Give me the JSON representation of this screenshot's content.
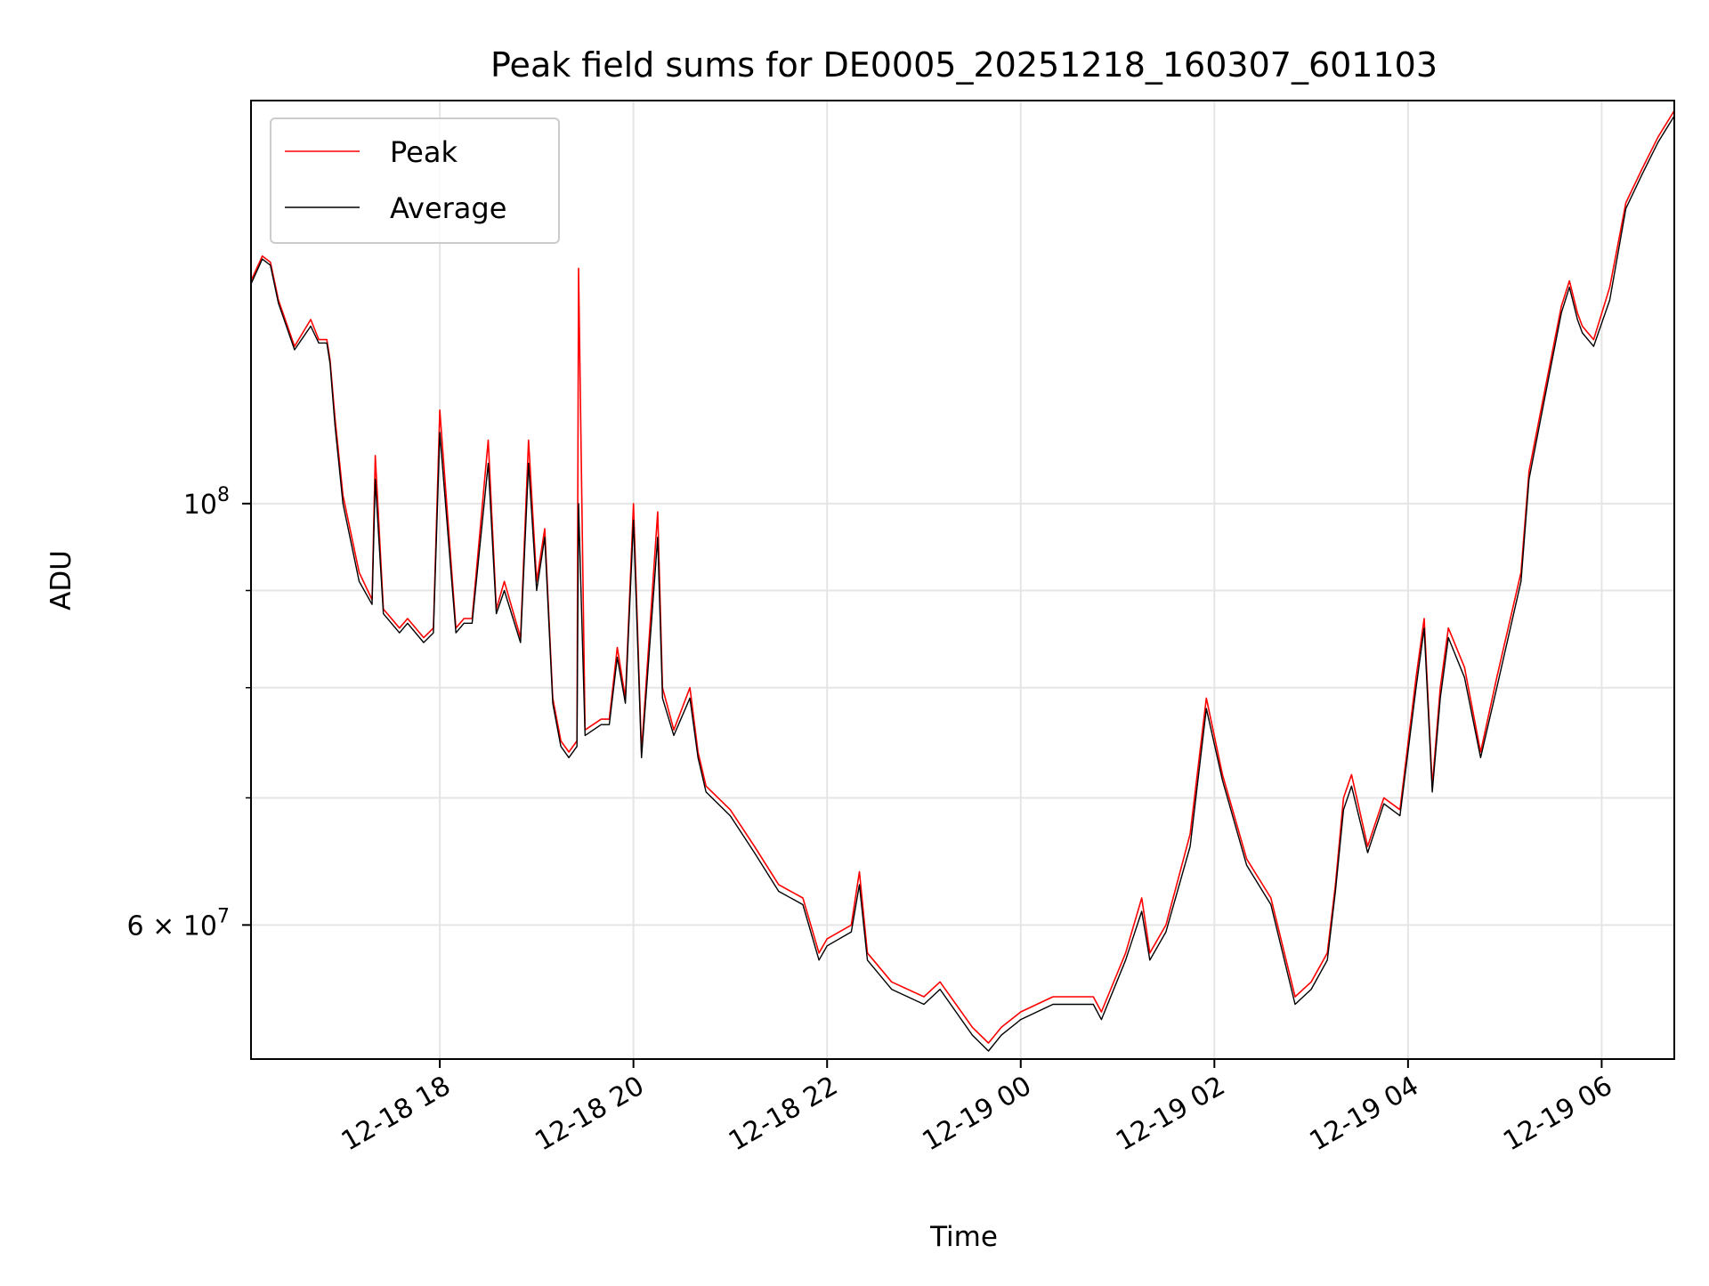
{
  "chart_data": {
    "type": "line",
    "title": "Peak field sums for DE0005_20251218_160307_601103",
    "xlabel": "Time",
    "ylabel": "ADU",
    "y_scale": "log",
    "ylim": [
      51000000,
      163000000
    ],
    "xlim": [
      "2025-12-18 16:03",
      "2025-12-19 06:45"
    ],
    "grid": true,
    "legend": {
      "position": "top-left"
    },
    "x_ticks": [
      {
        "time": "2025-12-18 18:00",
        "label": "12-18 18"
      },
      {
        "time": "2025-12-18 20:00",
        "label": "12-18 20"
      },
      {
        "time": "2025-12-18 22:00",
        "label": "12-18 22"
      },
      {
        "time": "2025-12-19 00:00",
        "label": "12-19 00"
      },
      {
        "time": "2025-12-19 02:00",
        "label": "12-19 02"
      },
      {
        "time": "2025-12-19 04:00",
        "label": "12-19 04"
      },
      {
        "time": "2025-12-19 06:00",
        "label": "12-19 06"
      }
    ],
    "y_major_ticks": [
      {
        "value": 60000000,
        "base": "6 × 10",
        "exp": "7"
      },
      {
        "value": 100000000,
        "base": "10",
        "exp": "8"
      }
    ],
    "y_minor_ticks": [
      70000000,
      80000000,
      90000000
    ],
    "series": [
      {
        "name": "Peak",
        "color": "#ff0000",
        "x": [
          "2025-12-18 16:03",
          "2025-12-18 16:10",
          "2025-12-18 16:15",
          "2025-12-18 16:20",
          "2025-12-18 16:30",
          "2025-12-18 16:40",
          "2025-12-18 16:45",
          "2025-12-18 16:50",
          "2025-12-18 16:52",
          "2025-12-18 16:55",
          "2025-12-18 17:00",
          "2025-12-18 17:10",
          "2025-12-18 17:18",
          "2025-12-18 17:20",
          "2025-12-18 17:25",
          "2025-12-18 17:35",
          "2025-12-18 17:40",
          "2025-12-18 17:50",
          "2025-12-18 17:56",
          "2025-12-18 18:00",
          "2025-12-18 18:10",
          "2025-12-18 18:15",
          "2025-12-18 18:20",
          "2025-12-18 18:30",
          "2025-12-18 18:35",
          "2025-12-18 18:40",
          "2025-12-18 18:50",
          "2025-12-18 18:55",
          "2025-12-18 19:00",
          "2025-12-18 19:05",
          "2025-12-18 19:10",
          "2025-12-18 19:15",
          "2025-12-18 19:20",
          "2025-12-18 19:25",
          "2025-12-18 19:26",
          "2025-12-18 19:30",
          "2025-12-18 19:40",
          "2025-12-18 19:45",
          "2025-12-18 19:50",
          "2025-12-18 19:55",
          "2025-12-18 20:00",
          "2025-12-18 20:05",
          "2025-12-18 20:15",
          "2025-12-18 20:18",
          "2025-12-18 20:25",
          "2025-12-18 20:35",
          "2025-12-18 20:40",
          "2025-12-18 20:45",
          "2025-12-18 21:00",
          "2025-12-18 21:15",
          "2025-12-18 21:30",
          "2025-12-18 21:45",
          "2025-12-18 21:55",
          "2025-12-18 22:00",
          "2025-12-18 22:15",
          "2025-12-18 22:20",
          "2025-12-18 22:25",
          "2025-12-18 22:40",
          "2025-12-18 23:00",
          "2025-12-18 23:10",
          "2025-12-18 23:30",
          "2025-12-18 23:40",
          "2025-12-18 23:48",
          "2025-12-19 00:00",
          "2025-12-19 00:20",
          "2025-12-19 00:30",
          "2025-12-19 00:45",
          "2025-12-19 00:50",
          "2025-12-19 01:05",
          "2025-12-19 01:15",
          "2025-12-19 01:20",
          "2025-12-19 01:30",
          "2025-12-19 01:45",
          "2025-12-19 01:55",
          "2025-12-19 02:05",
          "2025-12-19 02:20",
          "2025-12-19 02:35",
          "2025-12-19 02:50",
          "2025-12-19 03:00",
          "2025-12-19 03:10",
          "2025-12-19 03:15",
          "2025-12-19 03:20",
          "2025-12-19 03:25",
          "2025-12-19 03:35",
          "2025-12-19 03:45",
          "2025-12-19 03:55",
          "2025-12-19 04:05",
          "2025-12-19 04:10",
          "2025-12-19 04:15",
          "2025-12-19 04:20",
          "2025-12-19 04:25",
          "2025-12-19 04:35",
          "2025-12-19 04:45",
          "2025-12-19 04:55",
          "2025-12-19 05:10",
          "2025-12-19 05:15",
          "2025-12-19 05:25",
          "2025-12-19 05:35",
          "2025-12-19 05:40",
          "2025-12-19 05:45",
          "2025-12-19 05:48",
          "2025-12-19 05:55",
          "2025-12-19 06:05",
          "2025-12-19 06:15",
          "2025-12-19 06:25",
          "2025-12-19 06:35",
          "2025-12-19 06:45"
        ],
        "y": [
          131000000,
          135000000,
          134000000,
          128000000,
          121000000,
          125000000,
          122000000,
          122000000,
          119000000,
          111000000,
          101000000,
          92000000,
          89000000,
          106000000,
          88000000,
          86000000,
          87000000,
          85000000,
          86000000,
          112000000,
          86000000,
          87000000,
          87000000,
          108000000,
          88000000,
          91000000,
          85000000,
          108000000,
          91000000,
          97000000,
          79000000,
          75000000,
          74000000,
          75000000,
          133000000,
          76000000,
          77000000,
          77000000,
          84000000,
          79000000,
          100000000,
          74000000,
          99000000,
          80000000,
          76000000,
          80000000,
          74000000,
          71000000,
          69000000,
          66000000,
          63000000,
          62000000,
          58000000,
          59000000,
          60000000,
          64000000,
          58000000,
          56000000,
          55000000,
          56000000,
          53000000,
          52000000,
          53000000,
          54000000,
          55000000,
          55000000,
          55000000,
          54000000,
          58000000,
          62000000,
          58000000,
          60000000,
          67000000,
          79000000,
          72000000,
          65000000,
          62000000,
          55000000,
          56000000,
          58000000,
          63000000,
          70000000,
          72000000,
          66000000,
          70000000,
          69000000,
          81000000,
          87000000,
          71000000,
          80000000,
          86000000,
          82000000,
          74000000,
          81000000,
          92000000,
          104000000,
          115000000,
          127000000,
          131000000,
          126000000,
          124000000,
          122000000,
          130000000,
          144000000,
          150000000,
          156000000,
          161000000
        ]
      },
      {
        "name": "Average",
        "color": "#000000",
        "x": [
          "2025-12-18 16:03",
          "2025-12-18 16:10",
          "2025-12-18 16:15",
          "2025-12-18 16:20",
          "2025-12-18 16:30",
          "2025-12-18 16:40",
          "2025-12-18 16:45",
          "2025-12-18 16:50",
          "2025-12-18 16:52",
          "2025-12-18 16:55",
          "2025-12-18 17:00",
          "2025-12-18 17:10",
          "2025-12-18 17:18",
          "2025-12-18 17:20",
          "2025-12-18 17:25",
          "2025-12-18 17:35",
          "2025-12-18 17:40",
          "2025-12-18 17:50",
          "2025-12-18 17:56",
          "2025-12-18 18:00",
          "2025-12-18 18:10",
          "2025-12-18 18:15",
          "2025-12-18 18:20",
          "2025-12-18 18:30",
          "2025-12-18 18:35",
          "2025-12-18 18:40",
          "2025-12-18 18:50",
          "2025-12-18 18:55",
          "2025-12-18 19:00",
          "2025-12-18 19:05",
          "2025-12-18 19:10",
          "2025-12-18 19:15",
          "2025-12-18 19:20",
          "2025-12-18 19:25",
          "2025-12-18 19:26",
          "2025-12-18 19:30",
          "2025-12-18 19:40",
          "2025-12-18 19:45",
          "2025-12-18 19:50",
          "2025-12-18 19:55",
          "2025-12-18 20:00",
          "2025-12-18 20:05",
          "2025-12-18 20:15",
          "2025-12-18 20:18",
          "2025-12-18 20:25",
          "2025-12-18 20:35",
          "2025-12-18 20:40",
          "2025-12-18 20:45",
          "2025-12-18 21:00",
          "2025-12-18 21:15",
          "2025-12-18 21:30",
          "2025-12-18 21:45",
          "2025-12-18 21:55",
          "2025-12-18 22:00",
          "2025-12-18 22:15",
          "2025-12-18 22:20",
          "2025-12-18 22:25",
          "2025-12-18 22:40",
          "2025-12-18 23:00",
          "2025-12-18 23:10",
          "2025-12-18 23:30",
          "2025-12-18 23:40",
          "2025-12-18 23:48",
          "2025-12-19 00:00",
          "2025-12-19 00:20",
          "2025-12-19 00:30",
          "2025-12-19 00:45",
          "2025-12-19 00:50",
          "2025-12-19 01:05",
          "2025-12-19 01:15",
          "2025-12-19 01:20",
          "2025-12-19 01:30",
          "2025-12-19 01:45",
          "2025-12-19 01:55",
          "2025-12-19 02:05",
          "2025-12-19 02:20",
          "2025-12-19 02:35",
          "2025-12-19 02:50",
          "2025-12-19 03:00",
          "2025-12-19 03:10",
          "2025-12-19 03:15",
          "2025-12-19 03:20",
          "2025-12-19 03:25",
          "2025-12-19 03:35",
          "2025-12-19 03:45",
          "2025-12-19 03:55",
          "2025-12-19 04:05",
          "2025-12-19 04:10",
          "2025-12-19 04:15",
          "2025-12-19 04:20",
          "2025-12-19 04:25",
          "2025-12-19 04:35",
          "2025-12-19 04:45",
          "2025-12-19 04:55",
          "2025-12-19 05:10",
          "2025-12-19 05:15",
          "2025-12-19 05:25",
          "2025-12-19 05:35",
          "2025-12-19 05:40",
          "2025-12-19 05:45",
          "2025-12-19 05:48",
          "2025-12-19 05:55",
          "2025-12-19 06:05",
          "2025-12-19 06:15",
          "2025-12-19 06:25",
          "2025-12-19 06:35",
          "2025-12-19 06:45"
        ],
        "y": [
          130500000,
          134500000,
          133500000,
          127500000,
          120500000,
          124000000,
          121500000,
          121500000,
          118500000,
          110000000,
          100000000,
          91000000,
          88500000,
          103000000,
          87500000,
          85500000,
          86500000,
          84500000,
          85500000,
          109000000,
          85500000,
          86500000,
          86500000,
          105000000,
          87500000,
          90000000,
          84500000,
          105000000,
          90000000,
          96000000,
          78500000,
          74500000,
          73500000,
          74500000,
          100000000,
          75500000,
          76500000,
          76500000,
          83000000,
          78500000,
          98000000,
          73500000,
          96000000,
          79000000,
          75500000,
          79000000,
          73500000,
          70500000,
          68500000,
          65500000,
          62500000,
          61500000,
          57500000,
          58500000,
          59500000,
          63000000,
          57500000,
          55500000,
          54500000,
          55500000,
          52500000,
          51500000,
          52500000,
          53500000,
          54500000,
          54500000,
          54500000,
          53500000,
          57500000,
          61000000,
          57500000,
          59500000,
          66000000,
          78000000,
          71500000,
          64500000,
          61500000,
          54500000,
          55500000,
          57500000,
          62500000,
          69000000,
          71000000,
          65500000,
          69500000,
          68500000,
          80000000,
          86000000,
          70500000,
          79000000,
          85000000,
          81000000,
          73500000,
          80000000,
          91000000,
          103000000,
          114000000,
          126000000,
          130000000,
          125000000,
          123000000,
          121000000,
          128000000,
          143000000,
          149000000,
          155000000,
          160000000
        ]
      }
    ]
  }
}
